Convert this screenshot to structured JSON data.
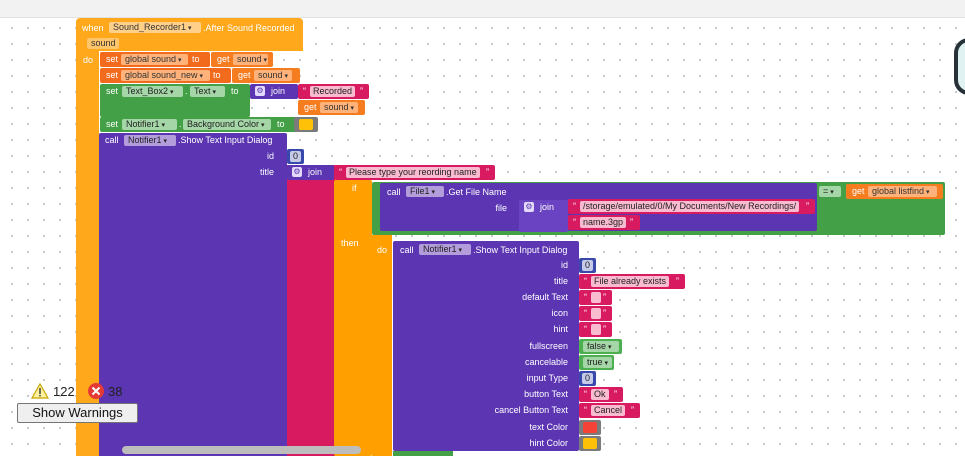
{
  "event": {
    "when": "when",
    "component": "Sound_Recorder1",
    "event_name": ".After Sound Recorded",
    "param": "sound",
    "do": "do"
  },
  "stmt1": {
    "set": "set",
    "var": "global sound",
    "to": "to",
    "get": "get",
    "get_var": "sound"
  },
  "stmt2": {
    "set": "set",
    "var": "global sound_new",
    "to": "to",
    "get": "get",
    "get_var": "sound"
  },
  "stmt3": {
    "set": "set",
    "component": "Text_Box2",
    "prop": "Text",
    "to": "to",
    "join": "join",
    "str": "Recorded",
    "get": "get",
    "get_var": "sound"
  },
  "stmt4": {
    "set": "set",
    "component": "Notifier1",
    "prop": "Background Color",
    "to": "to",
    "color": "#ffc107"
  },
  "call1": {
    "call": "call",
    "component": "Notifier1",
    "method": ".Show Text Input Dialog",
    "id_label": "id",
    "id_value": "0",
    "title_label": "title",
    "join": "join",
    "title_str": "Please type your reording name"
  },
  "ifblock": {
    "if": "if",
    "call": "call",
    "component": "File1",
    "method": ".Get File Name",
    "file_label": "file",
    "join": "join",
    "path": "/storage/emulated/0/My Documents/New Recordings/",
    "name": "name.3gp",
    "compare_op": "=",
    "get": "get",
    "get_var": "global listfind",
    "then": "then",
    "do": "do"
  },
  "call2": {
    "call": "call",
    "component": "Notifier1",
    "method": ".Show Text Input Dialog",
    "params": [
      {
        "label": "id",
        "value": "0"
      },
      {
        "label": "title",
        "value": "File already exists"
      },
      {
        "label": "default Text",
        "value": ""
      },
      {
        "label": "icon",
        "value": ""
      },
      {
        "label": "hint",
        "value": ""
      },
      {
        "label": "fullscreen",
        "value": "false"
      },
      {
        "label": "cancelable",
        "value": "true"
      },
      {
        "label": "input Type",
        "value": "0"
      },
      {
        "label": "button Text",
        "value": "Ok"
      },
      {
        "label": "cancel Button Text",
        "value": "Cancel"
      },
      {
        "label": "text Color",
        "value": ""
      },
      {
        "label": "hint Color",
        "value": ""
      }
    ],
    "text_color": "#f44336",
    "hint_color": "#ffc107"
  },
  "warnings": {
    "warn_count": "122",
    "error_count": "38",
    "show_warnings": "Show Warnings"
  }
}
